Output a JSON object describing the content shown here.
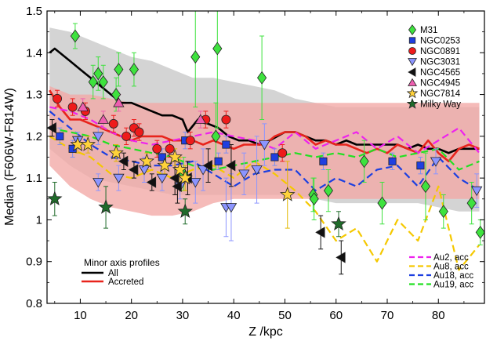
{
  "chart_data": {
    "type": "scatter",
    "xlabel": "Z /kpc",
    "ylabel": "Median (F606W-F814W)",
    "xlim": [
      3.5,
      89
    ],
    "ylim": [
      0.8,
      1.5
    ],
    "xticks": [
      10,
      20,
      30,
      40,
      50,
      60,
      70,
      80
    ],
    "yticks": [
      0.8,
      0.9,
      1.0,
      1.1,
      1.2,
      1.3,
      1.4,
      1.5
    ],
    "ytick_labels": [
      "0.8",
      "0.9",
      "1",
      "1.1",
      "1.2",
      "1.3",
      "1.4",
      "1.5"
    ],
    "legend_placement": "top-right",
    "bands": [
      {
        "name": "All",
        "color": "#c8c8c8",
        "x": [
          4,
          8,
          12,
          16,
          20,
          24,
          28,
          32,
          36,
          40,
          44,
          48,
          52,
          56,
          60,
          64,
          68,
          72,
          76,
          80,
          84,
          88
        ],
        "lower": [
          1.17,
          1.13,
          1.1,
          1.09,
          1.08,
          1.07,
          1.06,
          1.06,
          1.06,
          1.06,
          1.06,
          1.06,
          1.06,
          1.05,
          1.04,
          1.04,
          1.04,
          1.04,
          1.04,
          1.03,
          1.02,
          1.02
        ],
        "upper": [
          1.46,
          1.45,
          1.43,
          1.41,
          1.39,
          1.38,
          1.36,
          1.34,
          1.34,
          1.33,
          1.32,
          1.31,
          1.29,
          1.28,
          1.27,
          1.27,
          1.27,
          1.27,
          1.27,
          1.27,
          1.27,
          1.27
        ]
      },
      {
        "name": "Accreted",
        "color": "#f2a8a5",
        "x": [
          4,
          8,
          12,
          16,
          20,
          24,
          28,
          32,
          36,
          40,
          44,
          48,
          52,
          56,
          60,
          64,
          68,
          72,
          76,
          80,
          84,
          88
        ],
        "lower": [
          1.13,
          1.08,
          1.05,
          1.03,
          1.02,
          1.01,
          1.01,
          1.02,
          1.04,
          1.05,
          1.05,
          1.05,
          1.05,
          1.05,
          1.05,
          1.05,
          1.05,
          1.05,
          1.05,
          1.05,
          1.05,
          1.05
        ],
        "upper": [
          1.32,
          1.3,
          1.3,
          1.29,
          1.28,
          1.28,
          1.28,
          1.28,
          1.28,
          1.28,
          1.28,
          1.28,
          1.28,
          1.28,
          1.28,
          1.28,
          1.28,
          1.28,
          1.28,
          1.28,
          1.28,
          1.28
        ]
      }
    ],
    "lines": [
      {
        "name": "All",
        "color": "#000000",
        "width": 2.6,
        "dash": "",
        "x": [
          4,
          5,
          6,
          8,
          10,
          12,
          14,
          16,
          18,
          20,
          22,
          24,
          26,
          28,
          30,
          31,
          33,
          35,
          37,
          39,
          41,
          43,
          45,
          47,
          50,
          52,
          54,
          56,
          58,
          60,
          62,
          64,
          66,
          68,
          70,
          72,
          74,
          76,
          78,
          80,
          82,
          84,
          86,
          88
        ],
        "y": [
          1.4,
          1.41,
          1.4,
          1.38,
          1.36,
          1.34,
          1.32,
          1.3,
          1.28,
          1.28,
          1.27,
          1.26,
          1.25,
          1.25,
          1.24,
          1.21,
          1.24,
          1.23,
          1.22,
          1.2,
          1.19,
          1.19,
          1.18,
          1.19,
          1.21,
          1.21,
          1.2,
          1.19,
          1.19,
          1.18,
          1.19,
          1.18,
          1.18,
          1.18,
          1.18,
          1.18,
          1.17,
          1.18,
          1.17,
          1.17,
          1.16,
          1.17,
          1.17,
          1.17
        ]
      },
      {
        "name": "Accreted",
        "color": "#e8241c",
        "width": 2.6,
        "dash": "",
        "x": [
          4,
          6,
          8,
          10,
          12,
          14,
          16,
          18,
          20,
          22,
          24,
          26,
          28,
          30,
          32,
          34,
          36,
          38,
          40,
          42,
          44,
          46,
          48,
          50,
          52,
          54,
          56,
          58,
          60,
          62,
          64,
          66,
          68,
          70,
          72,
          74,
          76,
          78,
          80,
          82,
          84,
          86,
          88
        ],
        "y": [
          1.31,
          1.27,
          1.24,
          1.24,
          1.23,
          1.22,
          1.21,
          1.2,
          1.19,
          1.2,
          1.2,
          1.2,
          1.19,
          1.19,
          1.19,
          1.18,
          1.19,
          1.18,
          1.17,
          1.18,
          1.18,
          1.18,
          1.2,
          1.21,
          1.21,
          1.2,
          1.18,
          1.19,
          1.18,
          1.18,
          1.17,
          1.16,
          1.17,
          1.16,
          1.18,
          1.17,
          1.16,
          1.19,
          1.16,
          1.14,
          1.17,
          1.18,
          1.17
        ]
      },
      {
        "name": "Au2, acc",
        "color": "#ee22ee",
        "width": 2.2,
        "dash": "9,5",
        "x": [
          4,
          8,
          12,
          16,
          20,
          24,
          28,
          32,
          36,
          40,
          44,
          48,
          52,
          56,
          60,
          64,
          68,
          72,
          76,
          80,
          84,
          88
        ],
        "y": [
          1.27,
          1.26,
          1.24,
          1.21,
          1.19,
          1.18,
          1.19,
          1.2,
          1.21,
          1.2,
          1.19,
          1.17,
          1.21,
          1.17,
          1.19,
          1.21,
          1.17,
          1.2,
          1.16,
          1.19,
          1.22,
          1.16
        ]
      },
      {
        "name": "Au8, acc",
        "color": "#f5c800",
        "width": 2.2,
        "dash": "9,5",
        "x": [
          4,
          8,
          12,
          16,
          20,
          24,
          28,
          32,
          36,
          40,
          44,
          48,
          52,
          56,
          60,
          64,
          68,
          72,
          76,
          80,
          84,
          88
        ],
        "y": [
          1.2,
          1.17,
          1.15,
          1.11,
          1.1,
          1.12,
          1.1,
          1.12,
          1.13,
          1.1,
          1.14,
          1.11,
          1.07,
          1.02,
          0.95,
          0.98,
          0.9,
          1.0,
          0.95,
          1.08,
          0.88,
          0.94
        ]
      },
      {
        "name": "Au18, acc",
        "color": "#1c3fe0",
        "width": 2.2,
        "dash": "9,5",
        "x": [
          4,
          8,
          12,
          16,
          20,
          24,
          28,
          32,
          36,
          40,
          44,
          48,
          52,
          56,
          60,
          64,
          68,
          72,
          76,
          80,
          84,
          88
        ],
        "y": [
          1.26,
          1.22,
          1.18,
          1.15,
          1.14,
          1.13,
          1.13,
          1.14,
          1.11,
          1.08,
          1.11,
          1.12,
          1.12,
          1.07,
          1.1,
          1.08,
          1.12,
          1.13,
          1.08,
          1.15,
          1.1,
          1.07
        ]
      },
      {
        "name": "Au19, acc",
        "color": "#22e022",
        "width": 2.2,
        "dash": "9,5",
        "x": [
          4,
          8,
          12,
          16,
          20,
          24,
          28,
          32,
          36,
          40,
          44,
          48,
          52,
          56,
          60,
          64,
          68,
          72,
          76,
          80,
          84,
          88
        ],
        "y": [
          1.22,
          1.21,
          1.2,
          1.18,
          1.17,
          1.16,
          1.15,
          1.13,
          1.12,
          1.13,
          1.14,
          1.15,
          1.16,
          1.15,
          1.16,
          1.15,
          1.17,
          1.15,
          1.16,
          1.17,
          1.12,
          1.14
        ]
      }
    ],
    "series": [
      {
        "name": "M31",
        "marker": "diamond",
        "color": "#3ee23e",
        "err_color": "#3ee23e",
        "points": [
          {
            "x": 9,
            "y": 1.44,
            "e": 0.03
          },
          {
            "x": 12.5,
            "y": 1.33,
            "e": 0.04
          },
          {
            "x": 13.5,
            "y": 1.35,
            "e": 0.04
          },
          {
            "x": 14.5,
            "y": 1.33,
            "e": 0.04
          },
          {
            "x": 17.5,
            "y": 1.36,
            "e": 0.04
          },
          {
            "x": 17,
            "y": 1.3,
            "e": 0.04
          },
          {
            "x": 20.5,
            "y": 1.36,
            "e": 0.04
          },
          {
            "x": 32.5,
            "y": 1.39,
            "e": 0.12
          },
          {
            "x": 36.8,
            "y": 1.41,
            "e": 0.19
          },
          {
            "x": 45.5,
            "y": 1.34,
            "e": 0.1
          },
          {
            "x": 30.2,
            "y": 1.11,
            "e": 0.04
          },
          {
            "x": 36.5,
            "y": 1.2,
            "e": 0.08
          },
          {
            "x": 55.5,
            "y": 1.06,
            "e": 0.04
          },
          {
            "x": 55.7,
            "y": 1.05,
            "e": 0.05
          },
          {
            "x": 58.5,
            "y": 1.07,
            "e": 0.05
          },
          {
            "x": 65.5,
            "y": 1.14,
            "e": 0.05
          },
          {
            "x": 69,
            "y": 1.04,
            "e": 0.05
          },
          {
            "x": 77.5,
            "y": 1.08,
            "e": 0.08
          },
          {
            "x": 81,
            "y": 1.02,
            "e": 0.04
          },
          {
            "x": 86.5,
            "y": 1.04,
            "e": 0.05
          },
          {
            "x": 88.2,
            "y": 0.97,
            "e": 0.03
          }
        ]
      },
      {
        "name": "NGC0253",
        "marker": "square",
        "color": "#1f3fe0",
        "err_color": "#8090f0",
        "points": [
          {
            "x": 6,
            "y": 1.2,
            "e": 0.02
          },
          {
            "x": 8.5,
            "y": 1.17,
            "e": 0.02
          },
          {
            "x": 48,
            "y": 1.15,
            "e": 0.02
          },
          {
            "x": 57.5,
            "y": 1.14,
            "e": 0.02
          },
          {
            "x": 71,
            "y": 1.14,
            "e": 0.02
          },
          {
            "x": 76.5,
            "y": 1.13,
            "e": 0.02
          },
          {
            "x": 30.5,
            "y": 1.19,
            "e": 0.02
          },
          {
            "x": 38.5,
            "y": 1.18,
            "e": 0.02
          },
          {
            "x": 26,
            "y": 1.15,
            "e": 0.02
          },
          {
            "x": 37,
            "y": 1.14,
            "e": 0.02
          }
        ]
      },
      {
        "name": "NGC0891",
        "marker": "circle",
        "color": "#ee1b1b",
        "err_color": "#ee1b1b",
        "points": [
          {
            "x": 5.5,
            "y": 1.29,
            "e": 0.02
          },
          {
            "x": 8.5,
            "y": 1.27,
            "e": 0.02
          },
          {
            "x": 11,
            "y": 1.26,
            "e": 0.02
          },
          {
            "x": 16.5,
            "y": 1.23,
            "e": 0.02
          },
          {
            "x": 19,
            "y": 1.2,
            "e": 0.02
          },
          {
            "x": 20.5,
            "y": 1.22,
            "e": 0.02
          },
          {
            "x": 21.5,
            "y": 1.21,
            "e": 0.02
          },
          {
            "x": 25,
            "y": 1.17,
            "e": 0.02
          },
          {
            "x": 27.5,
            "y": 1.17,
            "e": 0.02
          },
          {
            "x": 31.5,
            "y": 1.19,
            "e": 0.02
          },
          {
            "x": 34.5,
            "y": 1.24,
            "e": 0.02
          },
          {
            "x": 38.5,
            "y": 1.24,
            "e": 0.02
          },
          {
            "x": 49.5,
            "y": 1.16,
            "e": 0.02
          }
        ]
      },
      {
        "name": "NGC3031",
        "marker": "triangle-down",
        "color": "#8c95ff",
        "err_color": "#8c95ff",
        "points": [
          {
            "x": 9.5,
            "y": 1.19,
            "e": 0.02
          },
          {
            "x": 13.5,
            "y": 1.2,
            "e": 0.02
          },
          {
            "x": 13.5,
            "y": 1.09,
            "e": 0.02
          },
          {
            "x": 17.5,
            "y": 1.1,
            "e": 0.03
          },
          {
            "x": 22.5,
            "y": 1.12,
            "e": 0.03
          },
          {
            "x": 26,
            "y": 1.1,
            "e": 0.03
          },
          {
            "x": 29.5,
            "y": 1.08,
            "e": 0.03
          },
          {
            "x": 32.5,
            "y": 1.09,
            "e": 0.05
          },
          {
            "x": 34,
            "y": 1.12,
            "e": 0.05
          },
          {
            "x": 38.5,
            "y": 1.03,
            "e": 0.07
          },
          {
            "x": 39.5,
            "y": 1.03,
            "e": 0.08
          },
          {
            "x": 42,
            "y": 1.11,
            "e": 0.05
          },
          {
            "x": 44.5,
            "y": 1.12,
            "e": 0.08
          },
          {
            "x": 46,
            "y": 1.18,
            "e": 0.05
          },
          {
            "x": 79.5,
            "y": 1.14,
            "e": 0.03
          },
          {
            "x": 87.5,
            "y": 1.07,
            "e": 0.04
          }
        ]
      },
      {
        "name": "NGC4565",
        "marker": "triangle-left",
        "color": "#111111",
        "err_color": "#111111",
        "points": [
          {
            "x": 4.5,
            "y": 1.22,
            "e": 0.02
          },
          {
            "x": 18.5,
            "y": 1.14,
            "e": 0.02
          },
          {
            "x": 20.5,
            "y": 1.12,
            "e": 0.02
          },
          {
            "x": 24,
            "y": 1.09,
            "e": 0.02
          },
          {
            "x": 28.5,
            "y": 1.1,
            "e": 0.04
          },
          {
            "x": 29,
            "y": 1.08,
            "e": 0.04
          },
          {
            "x": 31,
            "y": 1.1,
            "e": 0.04
          },
          {
            "x": 35,
            "y": 1.13,
            "e": 0.04
          },
          {
            "x": 39.5,
            "y": 1.13,
            "e": 0.05
          },
          {
            "x": 57,
            "y": 0.97,
            "e": 0.04
          },
          {
            "x": 61,
            "y": 0.91,
            "e": 0.04
          }
        ]
      },
      {
        "name": "NGC4945",
        "marker": "triangle-up",
        "color": "#ee5fb0",
        "err_color": "#ee5fb0",
        "points": [
          {
            "x": 10.5,
            "y": 1.27,
            "e": 0.02
          },
          {
            "x": 17.5,
            "y": 1.28,
            "e": 0.02
          },
          {
            "x": 33.5,
            "y": 1.24,
            "e": 0.02
          },
          {
            "x": 14.5,
            "y": 1.24,
            "e": 0.02
          }
        ]
      },
      {
        "name": "NGC7814",
        "marker": "star",
        "color": "#ffd23a",
        "err_color": "#e2b800",
        "points": [
          {
            "x": 9.5,
            "y": 1.18,
            "e": 0.02
          },
          {
            "x": 11.5,
            "y": 1.18,
            "e": 0.02
          },
          {
            "x": 17,
            "y": 1.16,
            "e": 0.02
          },
          {
            "x": 23,
            "y": 1.14,
            "e": 0.02
          },
          {
            "x": 26.5,
            "y": 1.13,
            "e": 0.02
          },
          {
            "x": 28.5,
            "y": 1.15,
            "e": 0.02
          },
          {
            "x": 29.5,
            "y": 1.12,
            "e": 0.03
          },
          {
            "x": 30.5,
            "y": 1.1,
            "e": 0.03
          },
          {
            "x": 50.5,
            "y": 1.06,
            "e": 0.08
          }
        ]
      },
      {
        "name": "Milky Way",
        "marker": "star",
        "color": "#1f6b2a",
        "err_color": "#1f6b2a",
        "points": [
          {
            "x": 5,
            "y": 1.05,
            "e": 0.04
          },
          {
            "x": 15,
            "y": 1.03,
            "e": 0.05
          },
          {
            "x": 30.5,
            "y": 1.02,
            "e": 0.03
          },
          {
            "x": 60.5,
            "y": 0.99,
            "e": 0.03
          }
        ]
      }
    ],
    "legend_markers": [
      "M31",
      "NGC0253",
      "NGC0891",
      "NGC3031",
      "NGC4565",
      "NGC4945",
      "NGC7814",
      "Milky Way"
    ],
    "legend_profiles": {
      "title": "Minor axis profiles",
      "entries": [
        {
          "name": "All",
          "color": "#000000"
        },
        {
          "name": "Accreted",
          "color": "#e8241c"
        }
      ]
    },
    "legend_auriga": [
      {
        "name": "Au2, acc",
        "color": "#ee22ee"
      },
      {
        "name": "Au8, acc",
        "color": "#f5c800"
      },
      {
        "name": "Au18, acc",
        "color": "#1c3fe0"
      },
      {
        "name": "Au19, acc",
        "color": "#22e022"
      }
    ]
  }
}
